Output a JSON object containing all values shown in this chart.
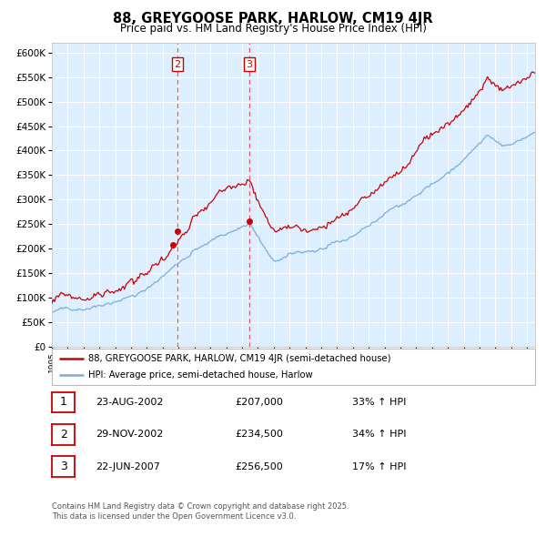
{
  "title": "88, GREYGOOSE PARK, HARLOW, CM19 4JR",
  "subtitle": "Price paid vs. HM Land Registry's House Price Index (HPI)",
  "legend_line1": "88, GREYGOOSE PARK, HARLOW, CM19 4JR (semi-detached house)",
  "legend_line2": "HPI: Average price, semi-detached house, Harlow",
  "footer": "Contains HM Land Registry data © Crown copyright and database right 2025.\nThis data is licensed under the Open Government Licence v3.0.",
  "transactions": [
    {
      "num": 1,
      "date": "23-AUG-2002",
      "date_dec": 2002.64,
      "price": 207000,
      "hpi_pct": "33% ↑ HPI"
    },
    {
      "num": 2,
      "date": "29-NOV-2002",
      "date_dec": 2002.92,
      "price": 234500,
      "hpi_pct": "34% ↑ HPI"
    },
    {
      "num": 3,
      "date": "22-JUN-2007",
      "date_dec": 2007.47,
      "price": 256500,
      "hpi_pct": "17% ↑ HPI"
    }
  ],
  "red_line_color": "#cc0000",
  "blue_line_color": "#7aadde",
  "background_color": "#ddeeff",
  "grid_color": "#ffffff",
  "ylim": [
    0,
    620000
  ],
  "yticks": [
    0,
    50000,
    100000,
    150000,
    200000,
    250000,
    300000,
    350000,
    400000,
    450000,
    500000,
    550000,
    600000
  ],
  "xstart": 1995.0,
  "xend": 2025.5
}
